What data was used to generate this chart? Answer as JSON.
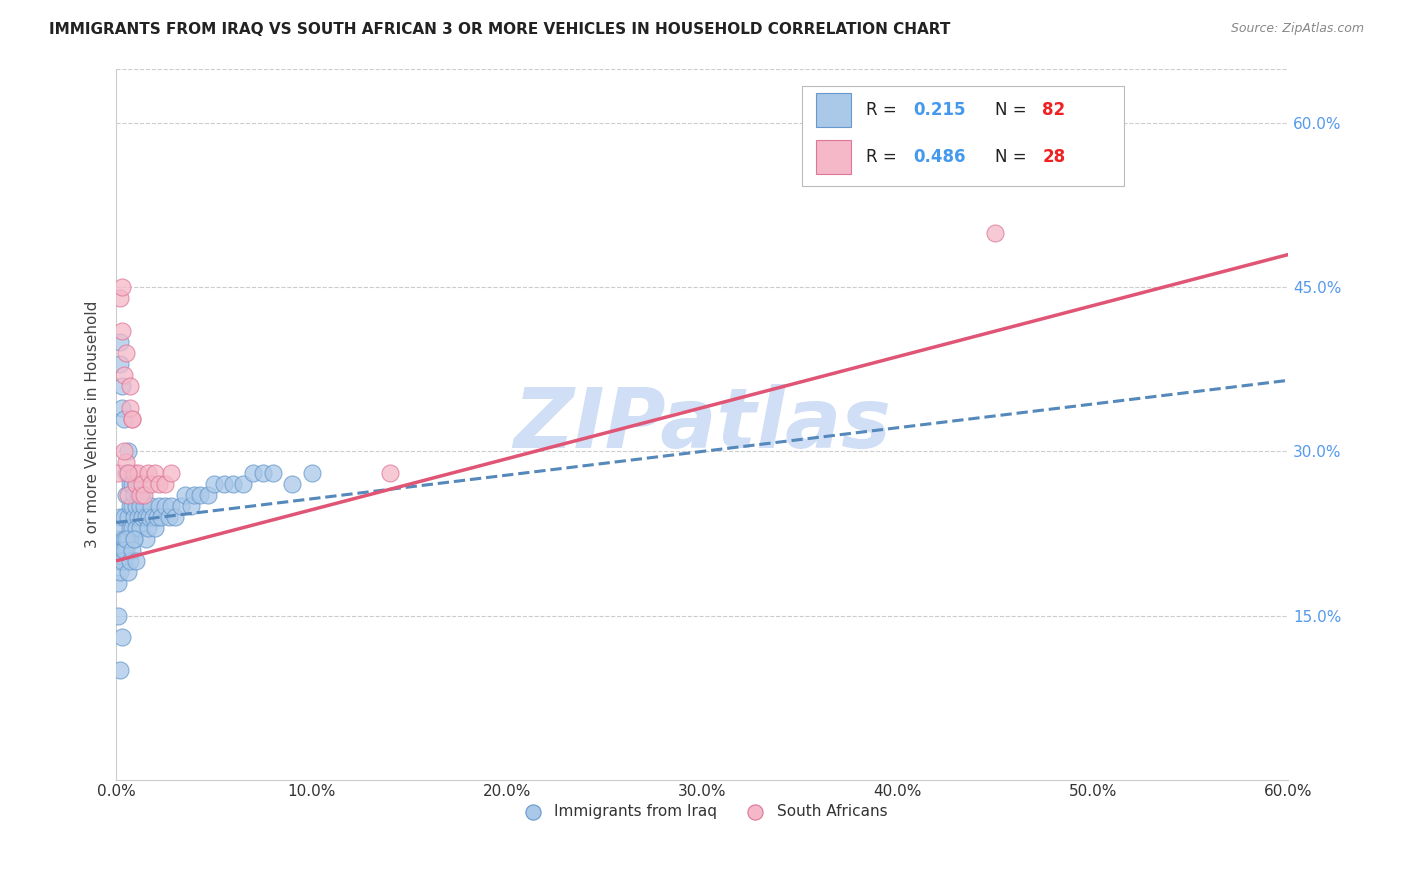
{
  "title": "IMMIGRANTS FROM IRAQ VS SOUTH AFRICAN 3 OR MORE VEHICLES IN HOUSEHOLD CORRELATION CHART",
  "source": "Source: ZipAtlas.com",
  "ylabel": "3 or more Vehicles in Household",
  "xlim": [
    0.0,
    0.6
  ],
  "ylim": [
    0.0,
    0.65
  ],
  "xtick_vals": [
    0.0,
    0.1,
    0.2,
    0.3,
    0.4,
    0.5,
    0.6
  ],
  "ytick_vals": [
    0.0,
    0.15,
    0.3,
    0.45,
    0.6
  ],
  "legend1_r": "0.215",
  "legend1_n": "82",
  "legend2_r": "0.486",
  "legend2_n": "28",
  "legend1_color": "#aac8e8",
  "legend2_color": "#f4b8c8",
  "legend1_edge": "#6699cc",
  "legend2_edge": "#dd7799",
  "trendline1_color": "#5588bb",
  "trendline2_color": "#e05575",
  "scatter1_color": "#aac8e8",
  "scatter2_color": "#f4b8c8",
  "scatter1_edge": "#6699cc",
  "scatter2_edge": "#dd7799",
  "watermark": "ZIPatlas",
  "watermark_color": "#d0dff5",
  "background_color": "#ffffff",
  "grid_color": "#cccccc",
  "title_color": "#222222",
  "ylabel_color": "#444444",
  "tick_color_x": "#333333",
  "tick_color_y": "#5599ee",
  "r_color": "#4499ee",
  "n_color": "#ee2222",
  "legend_label1": "Immigrants from Iraq",
  "legend_label2": "South Africans",
  "iraq_x": [
    0.001,
    0.001,
    0.001,
    0.002,
    0.002,
    0.002,
    0.002,
    0.003,
    0.003,
    0.003,
    0.003,
    0.004,
    0.004,
    0.004,
    0.004,
    0.005,
    0.005,
    0.005,
    0.006,
    0.006,
    0.006,
    0.006,
    0.007,
    0.007,
    0.007,
    0.008,
    0.008,
    0.008,
    0.009,
    0.009,
    0.009,
    0.01,
    0.01,
    0.01,
    0.011,
    0.011,
    0.012,
    0.012,
    0.013,
    0.013,
    0.014,
    0.015,
    0.015,
    0.016,
    0.017,
    0.018,
    0.019,
    0.02,
    0.021,
    0.022,
    0.023,
    0.025,
    0.027,
    0.028,
    0.03,
    0.033,
    0.035,
    0.038,
    0.04,
    0.043,
    0.047,
    0.05,
    0.055,
    0.06,
    0.065,
    0.07,
    0.075,
    0.08,
    0.09,
    0.1,
    0.001,
    0.002,
    0.003,
    0.004,
    0.005,
    0.006,
    0.007,
    0.008,
    0.009,
    0.01,
    0.002,
    0.003
  ],
  "iraq_y": [
    0.22,
    0.2,
    0.15,
    0.4,
    0.38,
    0.24,
    0.21,
    0.36,
    0.34,
    0.21,
    0.23,
    0.33,
    0.24,
    0.2,
    0.22,
    0.28,
    0.26,
    0.21,
    0.3,
    0.28,
    0.24,
    0.22,
    0.27,
    0.25,
    0.23,
    0.27,
    0.25,
    0.23,
    0.26,
    0.24,
    0.22,
    0.27,
    0.25,
    0.23,
    0.26,
    0.24,
    0.25,
    0.23,
    0.26,
    0.24,
    0.25,
    0.24,
    0.22,
    0.23,
    0.24,
    0.25,
    0.24,
    0.23,
    0.24,
    0.25,
    0.24,
    0.25,
    0.24,
    0.25,
    0.24,
    0.25,
    0.26,
    0.25,
    0.26,
    0.26,
    0.26,
    0.27,
    0.27,
    0.27,
    0.27,
    0.28,
    0.28,
    0.28,
    0.27,
    0.28,
    0.18,
    0.19,
    0.2,
    0.21,
    0.22,
    0.19,
    0.2,
    0.21,
    0.22,
    0.2,
    0.1,
    0.13
  ],
  "sa_x": [
    0.001,
    0.002,
    0.003,
    0.004,
    0.005,
    0.006,
    0.007,
    0.008,
    0.009,
    0.01,
    0.011,
    0.012,
    0.013,
    0.014,
    0.016,
    0.018,
    0.02,
    0.022,
    0.025,
    0.028,
    0.005,
    0.006,
    0.007,
    0.008,
    0.004,
    0.003,
    0.14,
    0.45
  ],
  "sa_y": [
    0.28,
    0.44,
    0.41,
    0.37,
    0.39,
    0.26,
    0.36,
    0.33,
    0.28,
    0.27,
    0.28,
    0.26,
    0.27,
    0.26,
    0.28,
    0.27,
    0.28,
    0.27,
    0.27,
    0.28,
    0.29,
    0.28,
    0.34,
    0.33,
    0.3,
    0.45,
    0.28,
    0.5
  ]
}
